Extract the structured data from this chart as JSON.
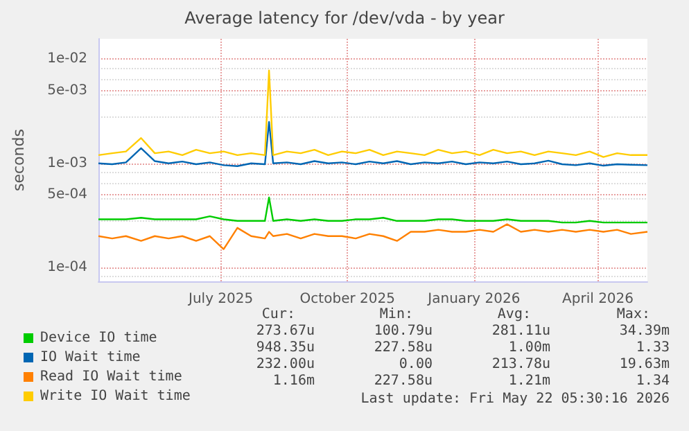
{
  "chart_data": {
    "type": "line",
    "title": "Average latency for /dev/vda - by year",
    "ylabel": "seconds",
    "x": [
      "2025-04-18",
      "2025-04-28",
      "2025-05-08",
      "2025-05-19",
      "2025-05-29",
      "2025-06-08",
      "2025-06-18",
      "2025-06-28",
      "2025-07-08",
      "2025-07-18",
      "2025-07-28",
      "2025-08-07",
      "2025-08-17",
      "2025-08-20",
      "2025-08-23",
      "2025-09-02",
      "2025-09-12",
      "2025-09-22",
      "2025-10-02",
      "2025-10-12",
      "2025-10-22",
      "2025-11-01",
      "2025-11-11",
      "2025-11-21",
      "2025-12-01",
      "2025-12-11",
      "2025-12-21",
      "2025-12-31",
      "2026-01-10",
      "2026-01-20",
      "2026-01-30",
      "2026-02-09",
      "2026-02-19",
      "2026-03-01",
      "2026-03-11",
      "2026-03-21",
      "2026-03-31",
      "2026-04-10",
      "2026-04-20",
      "2026-04-30",
      "2026-05-10",
      "2026-05-22"
    ],
    "series": [
      {
        "name": "Device IO time",
        "color": "#00cc00",
        "values": [
          0.00029,
          0.00029,
          0.00029,
          0.0003,
          0.00029,
          0.00029,
          0.00029,
          0.00029,
          0.00031,
          0.00029,
          0.00028,
          0.00028,
          0.00028,
          0.00047,
          0.00028,
          0.00029,
          0.00028,
          0.00029,
          0.00028,
          0.00028,
          0.00029,
          0.00029,
          0.0003,
          0.00028,
          0.00028,
          0.00028,
          0.00029,
          0.00029,
          0.00028,
          0.00028,
          0.00028,
          0.00029,
          0.00028,
          0.00028,
          0.00028,
          0.00027,
          0.00027,
          0.00028,
          0.00027,
          0.00027,
          0.00027,
          0.00027
        ]
      },
      {
        "name": "IO Wait time",
        "color": "#0066b3",
        "values": [
          0.001,
          0.00098,
          0.00102,
          0.0014,
          0.00105,
          0.001,
          0.00104,
          0.00098,
          0.00102,
          0.00096,
          0.00094,
          0.001,
          0.00098,
          0.0025,
          0.001,
          0.00102,
          0.00098,
          0.00105,
          0.001,
          0.00102,
          0.00098,
          0.00104,
          0.001,
          0.00105,
          0.00098,
          0.00102,
          0.001,
          0.00104,
          0.00098,
          0.00102,
          0.001,
          0.00104,
          0.00098,
          0.001,
          0.00106,
          0.00098,
          0.00096,
          0.001,
          0.00095,
          0.00098,
          0.00097,
          0.00096
        ]
      },
      {
        "name": "Read IO Wait time",
        "color": "#ff8000",
        "values": [
          0.0002,
          0.00019,
          0.0002,
          0.00018,
          0.0002,
          0.00019,
          0.0002,
          0.00018,
          0.0002,
          0.00015,
          0.00024,
          0.0002,
          0.00019,
          0.00022,
          0.0002,
          0.00021,
          0.00019,
          0.00021,
          0.0002,
          0.0002,
          0.00019,
          0.00021,
          0.0002,
          0.00018,
          0.00022,
          0.00022,
          0.00023,
          0.00022,
          0.00022,
          0.00023,
          0.00022,
          0.00026,
          0.00022,
          0.00023,
          0.00022,
          0.00023,
          0.00022,
          0.00023,
          0.00022,
          0.00023,
          0.00021,
          0.00022
        ]
      },
      {
        "name": "Write IO Wait time",
        "color": "#ffcc00",
        "values": [
          0.0012,
          0.00125,
          0.0013,
          0.00175,
          0.00125,
          0.0013,
          0.0012,
          0.00135,
          0.00125,
          0.0013,
          0.0012,
          0.00125,
          0.0012,
          0.0078,
          0.0012,
          0.0013,
          0.00125,
          0.00135,
          0.0012,
          0.0013,
          0.00125,
          0.00135,
          0.0012,
          0.0013,
          0.00125,
          0.0012,
          0.00135,
          0.00125,
          0.0013,
          0.0012,
          0.00135,
          0.00125,
          0.0013,
          0.0012,
          0.0013,
          0.00125,
          0.0012,
          0.0013,
          0.00115,
          0.00125,
          0.0012,
          0.0012
        ]
      }
    ],
    "log": "y",
    "ylim": [
      7.36e-05,
      0.0157
    ],
    "yticks": [
      {
        "value": 0.0001,
        "label": "1e-04"
      },
      {
        "value": 0.0005,
        "label": "5e-04"
      },
      {
        "value": 0.001,
        "label": "1e-03"
      },
      {
        "value": 0.005,
        "label": "5e-03"
      },
      {
        "value": 0.01,
        "label": "1e-02"
      }
    ],
    "xlim": [
      "2025-04-18",
      "2026-05-22"
    ],
    "xticks": [
      {
        "value": "2025-07-16",
        "label": "July 2025"
      },
      {
        "value": "2025-10-16",
        "label": "October 2025"
      },
      {
        "value": "2026-01-16",
        "label": "January 2026"
      },
      {
        "value": "2026-04-16",
        "label": "April 2026"
      }
    ],
    "grid": true,
    "legend": "bottom",
    "marker": "none",
    "line_style": "solid",
    "annotations": [
      "Cur:",
      "Min:",
      "Avg:",
      "Max:",
      "273.67u",
      "100.79u",
      "281.11u",
      "34.39m",
      "948.35u",
      "227.58u",
      "1.00m",
      "1.33",
      "232.00u",
      "0.00",
      "213.78u",
      "19.63m",
      "1.16m",
      "227.58u",
      "1.21m",
      "1.34",
      "Last update: Fri May 22 05:30:16 2026"
    ]
  }
}
